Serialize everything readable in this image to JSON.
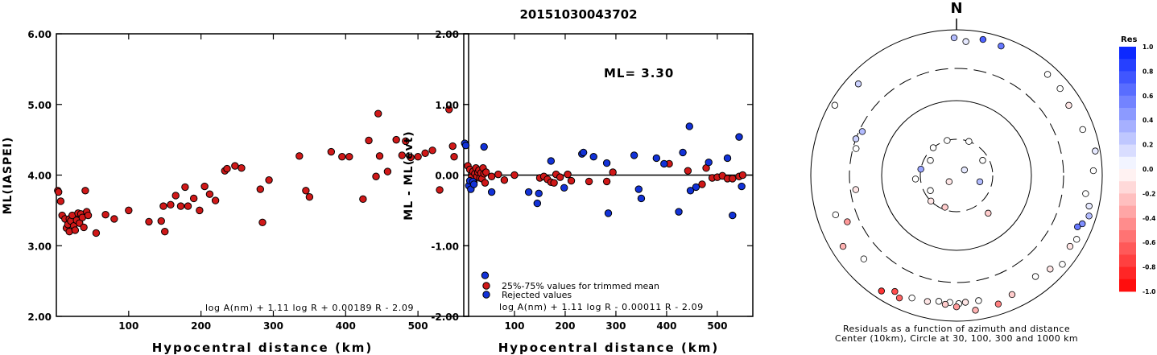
{
  "page_title": "20151030043702",
  "colors": {
    "accepted": "#d01818",
    "rejected": "#1232d8",
    "axis": "#000000"
  },
  "chart_data": [
    {
      "id": "ml-vs-distance",
      "type": "scatter",
      "title": "20151030043702",
      "xlabel": "Hypocentral distance (km)",
      "ylabel": "ML(IASPEI)",
      "xlim": [
        0,
        570
      ],
      "ylim": [
        2.0,
        6.0
      ],
      "x_ticks": [
        100,
        200,
        300,
        400,
        500
      ],
      "x_tick_labels": [
        "100",
        "200",
        "300",
        "400",
        "500"
      ],
      "y_ticks": [
        2.0,
        3.0,
        4.0,
        5.0,
        6.0
      ],
      "y_tick_labels": [
        "2.00",
        "3.00",
        "4.00",
        "5.00",
        "6.00"
      ],
      "formula": "log A(nm) + 1.11 log R + 0.00189 R - 2.09",
      "series": [
        {
          "status": "accepted",
          "points": [
            [
              2,
              3.78
            ],
            [
              3,
              3.76
            ],
            [
              6,
              3.63
            ],
            [
              8,
              3.43
            ],
            [
              12,
              3.38
            ],
            [
              14,
              3.25
            ],
            [
              16,
              3.3
            ],
            [
              18,
              3.38
            ],
            [
              18,
              3.2
            ],
            [
              20,
              3.35
            ],
            [
              22,
              3.43
            ],
            [
              24,
              3.28
            ],
            [
              26,
              3.22
            ],
            [
              28,
              3.36
            ],
            [
              30,
              3.46
            ],
            [
              32,
              3.32
            ],
            [
              34,
              3.45
            ],
            [
              36,
              3.4
            ],
            [
              38,
              3.26
            ],
            [
              40,
              3.78
            ],
            [
              42,
              3.48
            ],
            [
              44,
              3.43
            ],
            [
              55,
              3.18
            ],
            [
              68,
              3.44
            ],
            [
              80,
              3.38
            ],
            [
              100,
              3.5
            ],
            [
              128,
              3.34
            ],
            [
              145,
              3.35
            ],
            [
              148,
              3.56
            ],
            [
              150,
              3.2
            ],
            [
              158,
              3.58
            ],
            [
              165,
              3.71
            ],
            [
              172,
              3.56
            ],
            [
              178,
              3.83
            ],
            [
              182,
              3.56
            ],
            [
              190,
              3.67
            ],
            [
              198,
              3.5
            ],
            [
              205,
              3.84
            ],
            [
              212,
              3.73
            ],
            [
              220,
              3.64
            ],
            [
              233,
              4.06
            ],
            [
              236,
              4.09
            ],
            [
              247,
              4.13
            ],
            [
              256,
              4.1
            ],
            [
              282,
              3.8
            ],
            [
              285,
              3.33
            ],
            [
              294,
              3.93
            ],
            [
              336,
              4.27
            ],
            [
              345,
              3.78
            ],
            [
              350,
              3.69
            ],
            [
              380,
              4.33
            ],
            [
              395,
              4.26
            ],
            [
              405,
              4.26
            ],
            [
              424,
              3.66
            ],
            [
              432,
              4.49
            ],
            [
              442,
              3.98
            ],
            [
              445,
              4.87
            ],
            [
              447,
              4.27
            ],
            [
              458,
              4.05
            ],
            [
              470,
              4.5
            ],
            [
              478,
              4.28
            ],
            [
              483,
              4.48
            ],
            [
              490,
              4.25
            ],
            [
              500,
              4.26
            ],
            [
              510,
              4.31
            ],
            [
              520,
              4.35
            ],
            [
              530,
              3.79
            ],
            [
              543,
              4.93
            ],
            [
              548,
              4.41
            ],
            [
              550,
              4.26
            ]
          ]
        }
      ]
    },
    {
      "id": "residual-vs-distance",
      "type": "scatter",
      "xlabel": "Hypocentral distance (km)",
      "ylabel": "ML - ML(evt)",
      "xlim": [
        0,
        570
      ],
      "ylim": [
        -2.0,
        2.0
      ],
      "x_ticks": [
        100,
        200,
        300,
        400,
        500
      ],
      "x_tick_labels": [
        "100",
        "200",
        "300",
        "400",
        "500"
      ],
      "y_ticks": [
        -2.0,
        -1.0,
        0.0,
        1.0,
        2.0
      ],
      "y_tick_labels": [
        "-2.00",
        "-1.00",
        "0.00",
        "1.00",
        "2.00"
      ],
      "annotation": "ML= 3.30",
      "formula": "log A(nm) + 1.11 log R - 0.00011 R - 2.09",
      "legend": [
        "25%-75% values for trimmed mean",
        "Rejected values"
      ],
      "series": [
        {
          "name": "25%-75% values for trimmed mean",
          "status": "accepted",
          "points": [
            [
              8,
              0.13
            ],
            [
              12,
              0.08
            ],
            [
              14,
              -0.08
            ],
            [
              16,
              -0.02
            ],
            [
              18,
              0.05
            ],
            [
              20,
              -0.1
            ],
            [
              22,
              0.02
            ],
            [
              24,
              0.1
            ],
            [
              26,
              -0.02
            ],
            [
              28,
              0.04
            ],
            [
              30,
              0.07
            ],
            [
              32,
              -0.04
            ],
            [
              34,
              0.03
            ],
            [
              36,
              -0.05
            ],
            [
              38,
              0.1
            ],
            [
              40,
              0.02
            ],
            [
              42,
              -0.11
            ],
            [
              44,
              0.04
            ],
            [
              55,
              -0.02
            ],
            [
              68,
              0.01
            ],
            [
              80,
              -0.07
            ],
            [
              100,
              0.0
            ],
            [
              150,
              -0.04
            ],
            [
              158,
              -0.02
            ],
            [
              165,
              -0.06
            ],
            [
              172,
              -0.1
            ],
            [
              178,
              -0.11
            ],
            [
              182,
              0.01
            ],
            [
              190,
              -0.03
            ],
            [
              205,
              0.01
            ],
            [
              212,
              -0.08
            ],
            [
              247,
              -0.09
            ],
            [
              282,
              -0.09
            ],
            [
              294,
              0.04
            ],
            [
              405,
              0.16
            ],
            [
              442,
              0.06
            ],
            [
              470,
              -0.13
            ],
            [
              478,
              0.1
            ],
            [
              490,
              -0.04
            ],
            [
              500,
              -0.03
            ],
            [
              510,
              -0.01
            ],
            [
              520,
              -0.05
            ],
            [
              530,
              -0.05
            ],
            [
              543,
              -0.02
            ],
            [
              550,
              0.0
            ]
          ]
        },
        {
          "name": "Rejected values",
          "status": "rejected",
          "points": [
            [
              2,
              0.45
            ],
            [
              4,
              0.42
            ],
            [
              10,
              -0.15
            ],
            [
              12,
              -0.08
            ],
            [
              14,
              -0.2
            ],
            [
              18,
              -0.09
            ],
            [
              20,
              -0.13
            ],
            [
              40,
              0.4
            ],
            [
              42,
              -1.42
            ],
            [
              55,
              -0.24
            ],
            [
              128,
              -0.24
            ],
            [
              145,
              -0.4
            ],
            [
              148,
              -0.26
            ],
            [
              172,
              0.2
            ],
            [
              198,
              -0.18
            ],
            [
              233,
              0.3
            ],
            [
              236,
              0.32
            ],
            [
              256,
              0.26
            ],
            [
              282,
              0.17
            ],
            [
              285,
              -0.54
            ],
            [
              336,
              0.28
            ],
            [
              345,
              -0.2
            ],
            [
              350,
              -0.33
            ],
            [
              380,
              0.24
            ],
            [
              395,
              0.16
            ],
            [
              424,
              -0.52
            ],
            [
              432,
              0.32
            ],
            [
              445,
              0.69
            ],
            [
              447,
              -0.22
            ],
            [
              458,
              -0.17
            ],
            [
              483,
              0.18
            ],
            [
              520,
              0.24
            ],
            [
              530,
              -0.57
            ],
            [
              543,
              0.54
            ],
            [
              548,
              -0.16
            ]
          ]
        }
      ]
    },
    {
      "id": "residual-azimuth-map",
      "type": "scatter",
      "compass_label": "N",
      "caption_line1": "Residuals as a function of azimuth and distance",
      "caption_line2": "Center (10km), Circle at 30, 100, 300 and 1000 km",
      "colorbar_title": "Res",
      "colorbar_ticks": [
        1.0,
        0.8,
        0.6,
        0.4,
        0.2,
        0.0,
        -0.2,
        -0.4,
        -0.6,
        -0.8,
        -1.0
      ],
      "colorbar_tick_labels": [
        "1.0",
        "0.8",
        "0.6",
        "0.4",
        "0.2",
        "0.0",
        "-0.2",
        "-0.4",
        "-0.6",
        "-0.8",
        "-1.0"
      ],
      "ring_distances_km": [
        30,
        100,
        300,
        1000
      ],
      "points": [
        {
          "az": 359,
          "dist": 780,
          "res": 0.3
        },
        {
          "az": 4,
          "dist": 700,
          "res": 0.1
        },
        {
          "az": 11,
          "dist": 800,
          "res": 0.7
        },
        {
          "az": 19,
          "dist": 760,
          "res": 0.6
        },
        {
          "az": 42,
          "dist": 740,
          "res": 0.0
        },
        {
          "az": 50,
          "dist": 720,
          "res": 0.0
        },
        {
          "az": 58,
          "dist": 660,
          "res": -0.1
        },
        {
          "az": 70,
          "dist": 700,
          "res": 0.0
        },
        {
          "az": 80,
          "dist": 860,
          "res": 0.1
        },
        {
          "az": 88,
          "dist": 760,
          "res": 0.0
        },
        {
          "az": 98,
          "dist": 620,
          "res": 0.0
        },
        {
          "az": 103,
          "dist": 740,
          "res": 0.1
        },
        {
          "az": 107,
          "dist": 800,
          "res": 0.3
        },
        {
          "az": 111,
          "dist": 710,
          "res": 0.5
        },
        {
          "az": 113,
          "dist": 640,
          "res": 0.6
        },
        {
          "az": 118,
          "dist": 740,
          "res": 0.0
        },
        {
          "az": 122,
          "dist": 690,
          "res": -0.1
        },
        {
          "az": 130,
          "dist": 790,
          "res": 0.0
        },
        {
          "az": 135,
          "dist": 660,
          "res": -0.1
        },
        {
          "az": 142,
          "dist": 580,
          "res": 0.0
        },
        {
          "az": 155,
          "dist": 640,
          "res": -0.2
        },
        {
          "az": 162,
          "dist": 720,
          "res": -0.5
        },
        {
          "az": 170,
          "dist": 560,
          "res": 0.0
        },
        {
          "az": 172,
          "dist": 740,
          "res": -0.3
        },
        {
          "az": 176,
          "dist": 560,
          "res": -0.1
        },
        {
          "az": 179,
          "dist": 580,
          "res": 0.0
        },
        {
          "az": 180,
          "dist": 640,
          "res": -0.4
        },
        {
          "az": 183,
          "dist": 560,
          "res": 0.0
        },
        {
          "az": 185,
          "dist": 600,
          "res": -0.2
        },
        {
          "az": 188,
          "dist": 560,
          "res": 0.0
        },
        {
          "az": 193,
          "dist": 600,
          "res": -0.1
        },
        {
          "az": 200,
          "dist": 620,
          "res": 0.0
        },
        {
          "az": 205,
          "dist": 720,
          "res": -0.6
        },
        {
          "az": 208,
          "dist": 640,
          "res": -0.7
        },
        {
          "az": 213,
          "dist": 780,
          "res": -0.8
        },
        {
          "az": 228,
          "dist": 520,
          "res": 0.0
        },
        {
          "az": 238,
          "dist": 690,
          "res": -0.3
        },
        {
          "az": 247,
          "dist": 430,
          "res": -0.4
        },
        {
          "az": 252,
          "dist": 560,
          "res": 0.0
        },
        {
          "az": 262,
          "dist": 250,
          "res": -0.1
        },
        {
          "az": 285,
          "dist": 270,
          "res": 0.0
        },
        {
          "az": 290,
          "dist": 300,
          "res": 0.2
        },
        {
          "az": 295,
          "dist": 270,
          "res": 0.3
        },
        {
          "az": 300,
          "dist": 850,
          "res": 0.0
        },
        {
          "az": 313,
          "dist": 700,
          "res": 0.2
        },
        {
          "az": 345,
          "dist": 30,
          "res": 0.0
        },
        {
          "az": 20,
          "dist": 30,
          "res": 0.0
        },
        {
          "az": 60,
          "dist": 25,
          "res": 0.0
        },
        {
          "az": 105,
          "dist": 20,
          "res": 0.3
        },
        {
          "az": 140,
          "dist": 45,
          "res": -0.2
        },
        {
          "az": 200,
          "dist": 28,
          "res": -0.2
        },
        {
          "az": 225,
          "dist": 30,
          "res": -0.1
        },
        {
          "az": 240,
          "dist": 25,
          "res": 0.0
        },
        {
          "az": 265,
          "dist": 35,
          "res": 0.0
        },
        {
          "az": 280,
          "dist": 30,
          "res": 0.4
        },
        {
          "az": 300,
          "dist": 25,
          "res": 0.0
        },
        {
          "az": 320,
          "dist": 30,
          "res": 0.0
        },
        {
          "az": 55,
          "dist": 8,
          "res": 0.1
        },
        {
          "az": 230,
          "dist": 8,
          "res": -0.1
        }
      ]
    }
  ]
}
